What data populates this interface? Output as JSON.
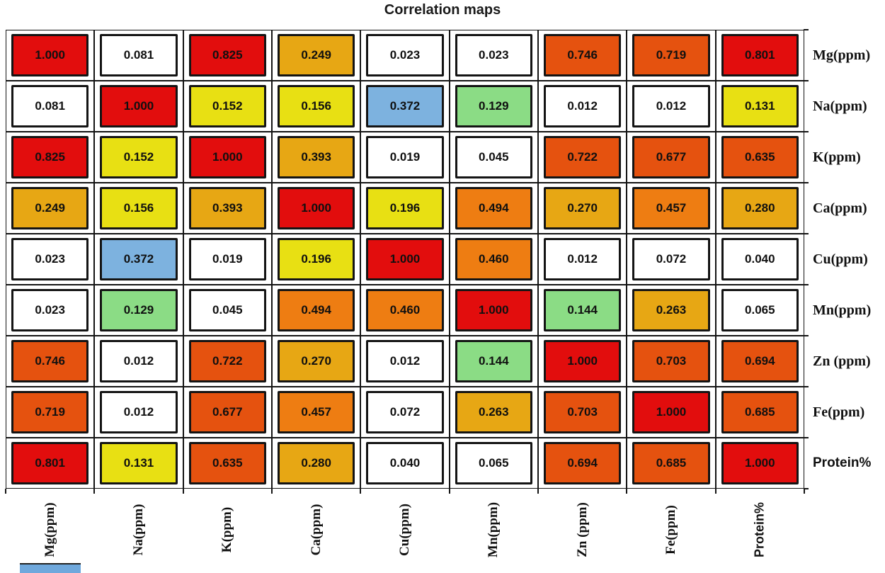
{
  "title": "Correlation maps",
  "chart_data": {
    "type": "heatmap",
    "title": "Correlation maps",
    "row_labels": [
      "Mg(ppm)",
      "Na(ppm)",
      "K(ppm)",
      "Ca(ppm)",
      "Cu(ppm)",
      "Mn(ppm)",
      "Zn (ppm)",
      "Fe(ppm)",
      "Protein%"
    ],
    "col_labels": [
      "Mg(ppm)",
      "Na(ppm)",
      "K(ppm)",
      "Ca(ppm)",
      "Cu(ppm)",
      "Mn(ppm)",
      "Zn (ppm)",
      "Fe(ppm)",
      "Protein%"
    ],
    "matrix": [
      [
        "1.000",
        "0.081",
        "0.825",
        "0.249",
        "0.023",
        "0.023",
        "0.746",
        "0.719",
        "0.801"
      ],
      [
        "0.081",
        "1.000",
        "0.152",
        "0.156",
        "0.372",
        "0.129",
        "0.012",
        "0.012",
        "0.131"
      ],
      [
        "0.825",
        "0.152",
        "1.000",
        "0.393",
        "0.019",
        "0.045",
        "0.722",
        "0.677",
        "0.635"
      ],
      [
        "0.249",
        "0.156",
        "0.393",
        "1.000",
        "0.196",
        "0.494",
        "0.270",
        "0.457",
        "0.280"
      ],
      [
        "0.023",
        "0.372",
        "0.019",
        "0.196",
        "1.000",
        "0.460",
        "0.012",
        "0.072",
        "0.040"
      ],
      [
        "0.023",
        "0.129",
        "0.045",
        "0.494",
        "0.460",
        "1.000",
        "0.144",
        "0.263",
        "0.065"
      ],
      [
        "0.746",
        "0.012",
        "0.722",
        "0.270",
        "0.012",
        "0.144",
        "1.000",
        "0.703",
        "0.694"
      ],
      [
        "0.719",
        "0.012",
        "0.677",
        "0.457",
        "0.072",
        "0.263",
        "0.703",
        "1.000",
        "0.685"
      ],
      [
        "0.801",
        "0.131",
        "0.635",
        "0.280",
        "0.040",
        "0.065",
        "0.694",
        "0.685",
        "1.000"
      ]
    ],
    "cell_color_codes": [
      [
        "r",
        "w",
        "r",
        "a",
        "w",
        "w",
        "o",
        "o",
        "r"
      ],
      [
        "w",
        "r",
        "y",
        "y",
        "b",
        "g",
        "w",
        "w",
        "y"
      ],
      [
        "r",
        "y",
        "r",
        "a",
        "w",
        "w",
        "o",
        "o",
        "o"
      ],
      [
        "a",
        "y",
        "a",
        "r",
        "y",
        "n",
        "a",
        "n",
        "a"
      ],
      [
        "w",
        "b",
        "w",
        "y",
        "r",
        "n",
        "w",
        "w",
        "w"
      ],
      [
        "w",
        "g",
        "w",
        "n",
        "n",
        "r",
        "g",
        "a",
        "w"
      ],
      [
        "o",
        "w",
        "o",
        "a",
        "w",
        "g",
        "r",
        "o",
        "o"
      ],
      [
        "o",
        "w",
        "o",
        "n",
        "w",
        "a",
        "o",
        "r",
        "o"
      ],
      [
        "r",
        "y",
        "o",
        "a",
        "w",
        "w",
        "o",
        "o",
        "r"
      ]
    ],
    "palette": {
      "r": "#e20d0d",
      "o": "#e5520f",
      "n": "#ee7d12",
      "a": "#e7a714",
      "y": "#e8e013",
      "g": "#8bdc85",
      "b": "#7db2df",
      "w": "#ffffff"
    },
    "grid_line_color": "#141414",
    "legend_position": "none",
    "value_range": [
      0,
      1
    ]
  },
  "fragment_color": "#6fa8dc"
}
